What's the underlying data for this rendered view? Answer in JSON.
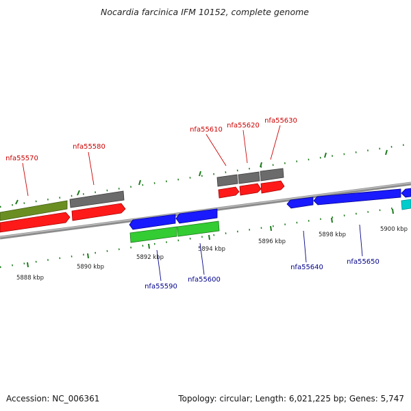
{
  "title": "Nocardia farcinica IFM 10152, complete genome",
  "footer": {
    "accession": "Accession: NC_006361",
    "summary": "Topology: circular; Length: 6,021,225 bp; Genes: 5,747"
  },
  "colors": {
    "forward_label": "#cc0000",
    "reverse_label": "#00008b",
    "olive": "#6b8e23",
    "red": "#ff1a1a",
    "gray": "#6b6b6b",
    "blue": "#1a1aff",
    "green": "#33cc33",
    "cyan": "#00cccc",
    "tick": "#1a7a1a",
    "backbone": "#8c8c8c"
  },
  "ruler_labels": [
    {
      "kbp": 5888,
      "text": "5888 kbp"
    },
    {
      "kbp": 5890,
      "text": "5890 kbp"
    },
    {
      "kbp": 5892,
      "text": "5892 kbp"
    },
    {
      "kbp": 5894,
      "text": "5894 kbp"
    },
    {
      "kbp": 5896,
      "text": "5896 kbp"
    },
    {
      "kbp": 5898,
      "text": "5898 kbp"
    },
    {
      "kbp": 5900,
      "text": "5900 kbp"
    }
  ],
  "gene_labels": {
    "forward": [
      "nfa55570",
      "nfa55580",
      "nfa55610",
      "nfa55620",
      "nfa55630"
    ],
    "reverse": [
      "nfa55590",
      "nfa55600",
      "nfa55640",
      "nfa55650"
    ]
  }
}
